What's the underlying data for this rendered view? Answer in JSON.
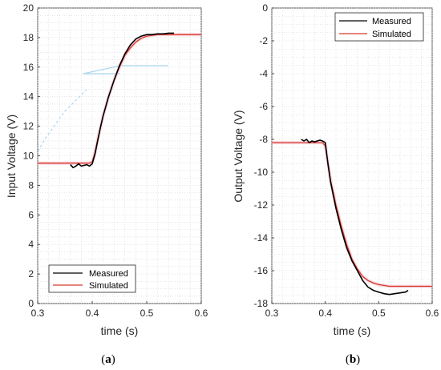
{
  "chart_data": [
    {
      "type": "line",
      "panel": "a",
      "xlabel": "time (s)",
      "ylabel": "Input Voltage (V)",
      "xlim": [
        0.3,
        0.6
      ],
      "ylim": [
        0,
        20
      ],
      "x_ticks": [
        "0.3",
        "0.4",
        "0.5",
        "0.6"
      ],
      "y_ticks": [
        "0",
        "2",
        "4",
        "6",
        "8",
        "10",
        "12",
        "14",
        "16",
        "18",
        "20"
      ],
      "grid": true,
      "legend_position": "bottom-left",
      "caption": {
        "open": "(",
        "label": "a",
        "close": ")"
      },
      "series": [
        {
          "name": "Measured",
          "color": "#000000",
          "x": [
            0.36,
            0.365,
            0.37,
            0.375,
            0.38,
            0.385,
            0.39,
            0.395,
            0.4,
            0.405,
            0.41,
            0.415,
            0.42,
            0.43,
            0.44,
            0.45,
            0.46,
            0.47,
            0.48,
            0.49,
            0.5,
            0.51,
            0.52,
            0.53,
            0.54,
            0.55
          ],
          "y": [
            9.4,
            9.2,
            9.3,
            9.45,
            9.3,
            9.35,
            9.4,
            9.3,
            9.45,
            10.1,
            11.0,
            11.9,
            12.7,
            14.0,
            15.1,
            16.1,
            16.9,
            17.5,
            17.9,
            18.1,
            18.2,
            18.2,
            18.25,
            18.25,
            18.3,
            18.3
          ]
        },
        {
          "name": "Simulated",
          "color": "#d6382d",
          "x": [
            0.3,
            0.39,
            0.395,
            0.4,
            0.405,
            0.41,
            0.415,
            0.42,
            0.43,
            0.44,
            0.45,
            0.46,
            0.47,
            0.48,
            0.49,
            0.5,
            0.51,
            0.52,
            0.53,
            0.54,
            0.55,
            0.6
          ],
          "y": [
            9.5,
            9.5,
            9.5,
            9.6,
            10.2,
            11.1,
            11.9,
            12.7,
            14.0,
            15.1,
            16.0,
            16.8,
            17.3,
            17.7,
            17.95,
            18.1,
            18.15,
            18.2,
            18.2,
            18.2,
            18.2,
            18.2
          ]
        }
      ]
    },
    {
      "type": "line",
      "panel": "b",
      "xlabel": "time (s)",
      "ylabel": "Output Voltage (V)",
      "xlim": [
        0.3,
        0.6
      ],
      "ylim": [
        -18,
        0
      ],
      "x_ticks": [
        "0.3",
        "0.4",
        "0.5",
        "0.6"
      ],
      "y_ticks": [
        "0",
        "-2",
        "-4",
        "-6",
        "-8",
        "-10",
        "-12",
        "-14",
        "-16",
        "-18"
      ],
      "grid": true,
      "legend_position": "top-right",
      "caption": {
        "open": "(",
        "label": "b",
        "close": ")"
      },
      "series": [
        {
          "name": "Measured",
          "color": "#000000",
          "x": [
            0.355,
            0.36,
            0.365,
            0.37,
            0.375,
            0.38,
            0.385,
            0.39,
            0.395,
            0.4,
            0.405,
            0.41,
            0.42,
            0.43,
            0.44,
            0.45,
            0.46,
            0.47,
            0.48,
            0.49,
            0.5,
            0.51,
            0.52,
            0.53,
            0.54,
            0.55,
            0.555
          ],
          "y": [
            -8.0,
            -8.1,
            -8.0,
            -8.2,
            -8.1,
            -8.15,
            -8.1,
            -8.05,
            -8.1,
            -8.2,
            -9.5,
            -10.6,
            -12.2,
            -13.5,
            -14.6,
            -15.4,
            -16.0,
            -16.6,
            -17.0,
            -17.2,
            -17.3,
            -17.4,
            -17.45,
            -17.4,
            -17.35,
            -17.3,
            -17.2
          ]
        },
        {
          "name": "Simulated",
          "color": "#d6382d",
          "x": [
            0.3,
            0.395,
            0.4,
            0.405,
            0.41,
            0.42,
            0.43,
            0.44,
            0.45,
            0.46,
            0.47,
            0.48,
            0.49,
            0.5,
            0.51,
            0.52,
            0.53,
            0.54,
            0.55,
            0.6
          ],
          "y": [
            -8.2,
            -8.2,
            -8.4,
            -9.4,
            -10.5,
            -12.0,
            -13.3,
            -14.4,
            -15.3,
            -15.9,
            -16.35,
            -16.6,
            -16.75,
            -16.85,
            -16.9,
            -16.95,
            -16.95,
            -16.95,
            -16.95,
            -16.95
          ]
        }
      ]
    }
  ]
}
